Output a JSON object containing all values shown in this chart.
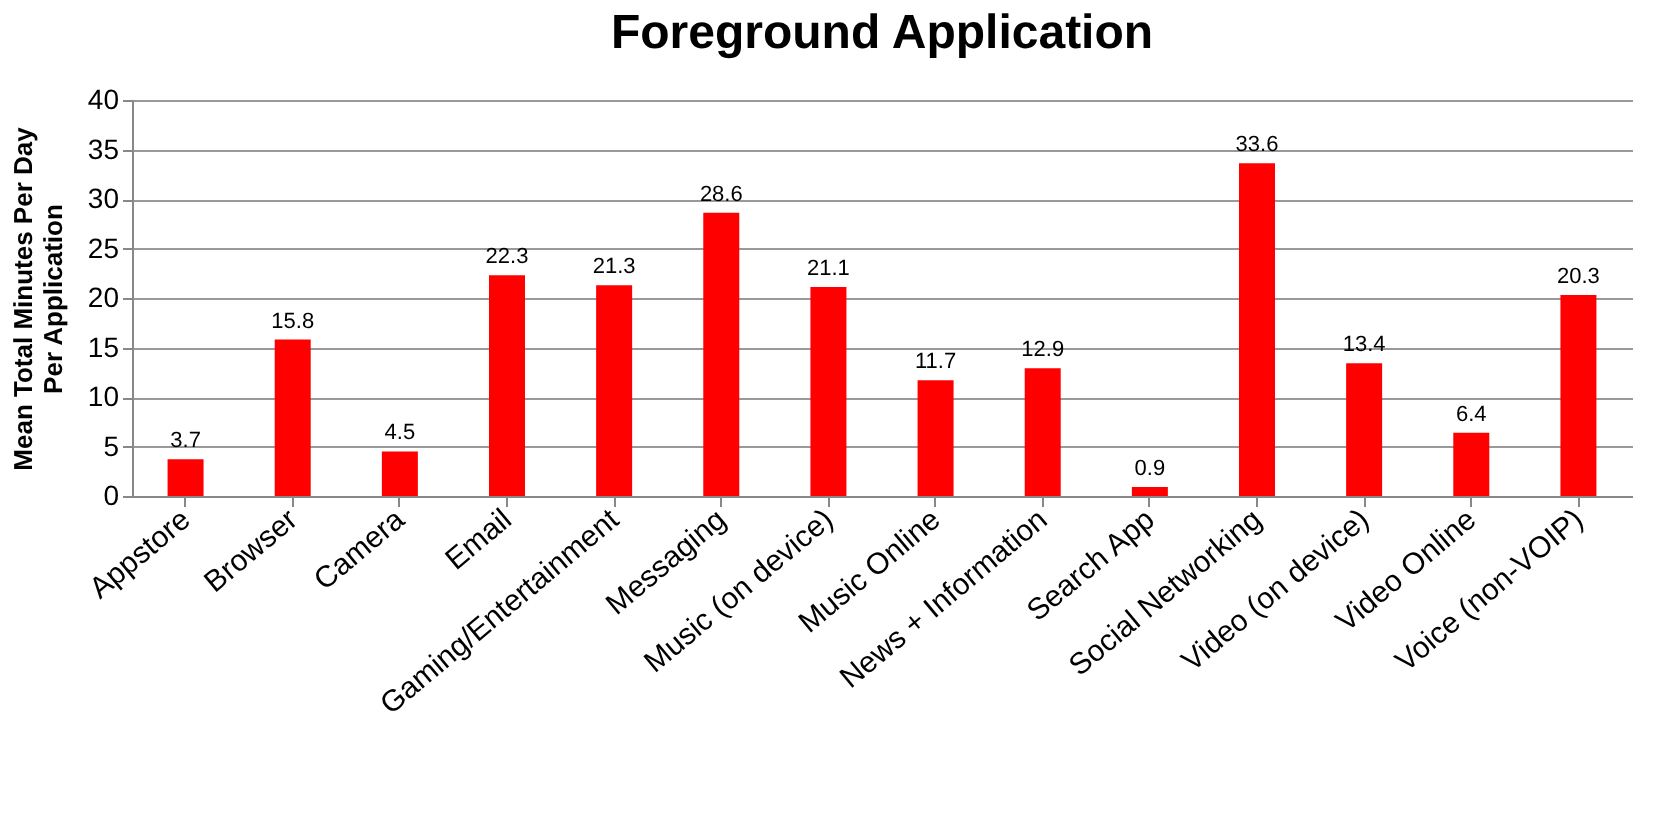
{
  "chart_data": {
    "type": "bar",
    "title": "Foreground Application",
    "ylabel": "Mean Total Minutes Per Day\nPer  Application",
    "categories": [
      "Appstore",
      "Browser",
      "Camera",
      "Email",
      "Gaming/Entertainment",
      "Messaging",
      "Music (on device)",
      "Music Online",
      "News + Information",
      "Search App",
      "Social Networking",
      "Video (on device)",
      "Video Online",
      "Voice (non-VOIP)"
    ],
    "values": [
      3.7,
      15.8,
      4.5,
      22.3,
      21.3,
      28.6,
      21.1,
      11.7,
      12.9,
      0.9,
      33.6,
      13.4,
      6.4,
      20.3
    ],
    "color": "#ff0000",
    "ylim": [
      0,
      40
    ],
    "yticks": [
      0,
      5,
      10,
      15,
      20,
      25,
      30,
      35,
      40
    ],
    "grid": "y",
    "data_labels": true
  }
}
